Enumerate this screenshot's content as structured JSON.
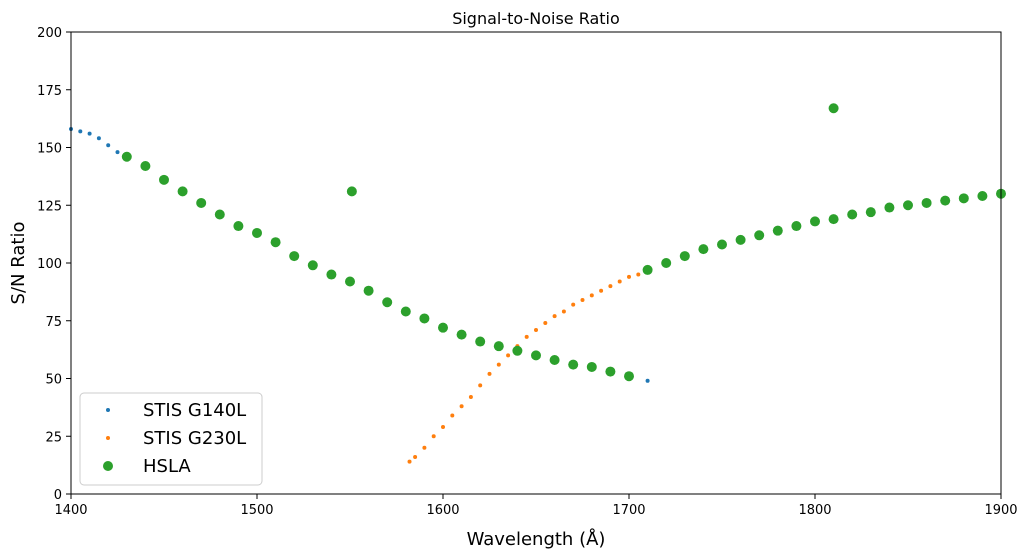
{
  "chart_data": {
    "type": "scatter",
    "title": "Signal-to-Noise Ratio",
    "xlabel": "Wavelength (Å)",
    "ylabel": "S/N Ratio",
    "xlim": [
      1400,
      1900
    ],
    "ylim": [
      0,
      200
    ],
    "xticks": [
      1400,
      1500,
      1600,
      1700,
      1800,
      1900
    ],
    "yticks": [
      0,
      25,
      50,
      75,
      100,
      125,
      150,
      175,
      200
    ],
    "legend_position": "lower-left",
    "series": [
      {
        "name": "STIS G140L",
        "color": "#1f77b4",
        "marker_size": "small",
        "x": [
          1400,
          1405,
          1410,
          1415,
          1420,
          1425,
          1430,
          1440,
          1450,
          1460,
          1470,
          1480,
          1490,
          1500,
          1510,
          1520,
          1530,
          1540,
          1550,
          1560,
          1570,
          1580,
          1590,
          1600,
          1610,
          1620,
          1630,
          1640,
          1650,
          1660,
          1670,
          1680,
          1690,
          1700,
          1710
        ],
        "y": [
          158,
          157,
          156,
          154,
          151,
          148,
          146,
          142,
          136,
          131,
          126,
          121,
          116,
          113,
          109,
          103,
          99,
          95,
          92,
          88,
          83,
          79,
          76,
          72,
          69,
          66,
          64,
          62,
          60,
          58,
          56,
          55,
          53,
          51,
          49
        ]
      },
      {
        "name": "STIS G230L",
        "color": "#ff7f0e",
        "marker_size": "small",
        "x": [
          1582,
          1585,
          1590,
          1595,
          1600,
          1605,
          1610,
          1615,
          1620,
          1625,
          1630,
          1635,
          1640,
          1645,
          1650,
          1655,
          1660,
          1665,
          1670,
          1675,
          1680,
          1685,
          1690,
          1695,
          1700,
          1705,
          1710
        ],
        "y": [
          14,
          16,
          20,
          25,
          29,
          34,
          38,
          42,
          47,
          52,
          56,
          60,
          64,
          68,
          71,
          74,
          77,
          79,
          82,
          84,
          86,
          88,
          90,
          92,
          94,
          95,
          97
        ]
      },
      {
        "name": "HSLA",
        "color": "#2ca02c",
        "marker_size": "large",
        "x": [
          1430,
          1440,
          1450,
          1460,
          1470,
          1480,
          1490,
          1500,
          1510,
          1520,
          1530,
          1540,
          1550,
          1560,
          1570,
          1580,
          1590,
          1600,
          1610,
          1620,
          1630,
          1640,
          1650,
          1660,
          1670,
          1680,
          1690,
          1700,
          1710,
          1720,
          1730,
          1740,
          1750,
          1760,
          1770,
          1780,
          1790,
          1800,
          1810,
          1820,
          1830,
          1840,
          1850,
          1860,
          1870,
          1880,
          1890,
          1900,
          1551,
          1810
        ],
        "y": [
          146,
          142,
          136,
          131,
          126,
          121,
          116,
          113,
          109,
          103,
          99,
          95,
          92,
          88,
          83,
          79,
          76,
          72,
          69,
          66,
          64,
          62,
          60,
          58,
          56,
          55,
          53,
          51,
          97,
          100,
          103,
          106,
          108,
          110,
          112,
          114,
          116,
          118,
          119,
          121,
          122,
          124,
          125,
          126,
          127,
          128,
          129,
          130,
          131,
          167
        ]
      }
    ]
  }
}
